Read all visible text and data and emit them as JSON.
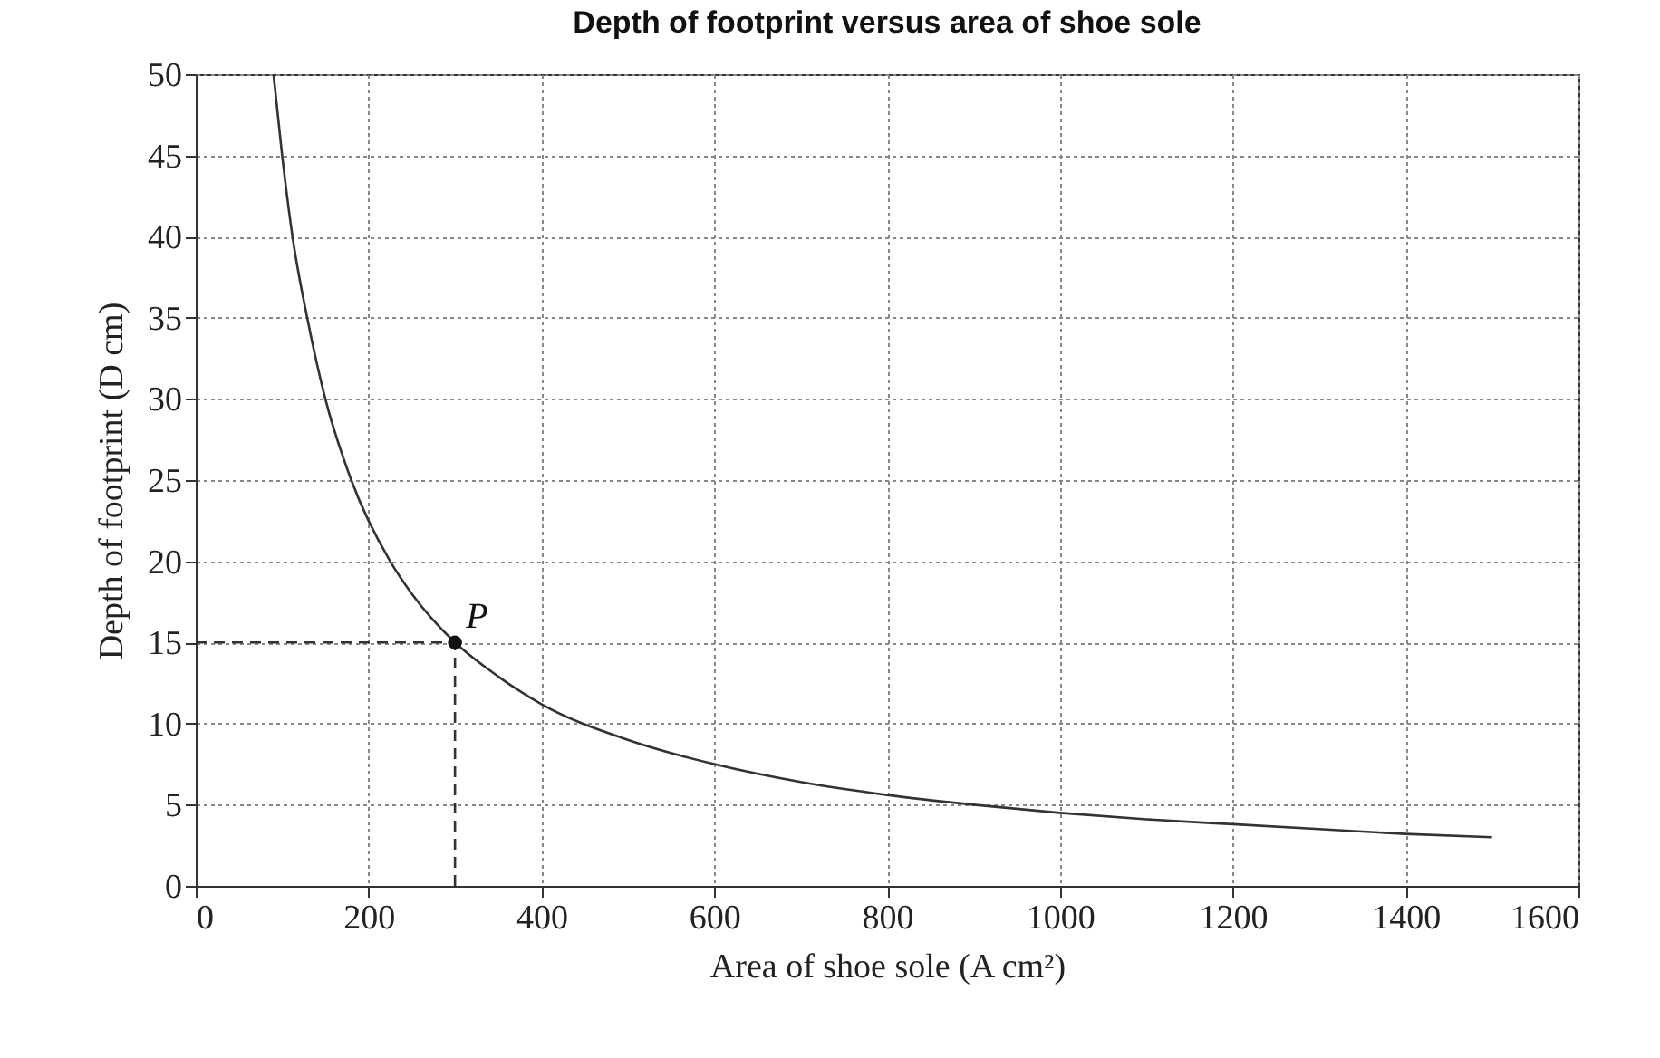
{
  "chart_data": {
    "type": "line",
    "title": "Depth of footprint versus area of shoe sole",
    "xlabel": "Area of shoe sole (A cm²)",
    "ylabel": "Depth of footprint (D cm)",
    "xlim": [
      0,
      1600
    ],
    "xticks": [
      0,
      200,
      400,
      600,
      800,
      {
        "value": 1000,
        "label": "1000"
      },
      {
        "value": 1200,
        "label": "1200"
      },
      {
        "value": 1400,
        "label": "1400"
      },
      {
        "value": 1600,
        "label": "1600"
      }
    ],
    "ylim": [
      0,
      50
    ],
    "yticks": [
      0,
      5,
      10,
      15,
      20,
      25,
      30,
      35,
      40,
      45,
      50
    ],
    "grid": true,
    "marker": "none",
    "series": [
      {
        "color": "#333333",
        "line_style": "solid",
        "x": [
          90,
          100,
          112,
          129,
          150,
          180,
          225,
          250,
          300,
          350,
          400,
          500,
          600,
          700,
          800,
          900,
          1000,
          1100,
          1200,
          1300,
          1400,
          1500
        ],
        "values": [
          50,
          45,
          40,
          35,
          30,
          25,
          20,
          18,
          15,
          12.9,
          11.2,
          9,
          7.5,
          6.4,
          5.6,
          5,
          4.5,
          4.1,
          3.8,
          3.5,
          3.2,
          3
        ]
      },
      {
        "type": "line",
        "color": "#333333",
        "line_style": "dashed",
        "x": [
          0,
          300
        ],
        "values": [
          15,
          15
        ]
      },
      {
        "type": "line",
        "color": "#333333",
        "line_style": "dashed",
        "x": [
          300,
          300
        ],
        "values": [
          0,
          15
        ]
      },
      {
        "type": "scatter",
        "color": "#111111",
        "marker": "circle",
        "x": [
          300
        ],
        "values": [
          15
        ]
      }
    ],
    "annotations": [
      {
        "text": "P",
        "x": 300,
        "y": 15
      }
    ]
  }
}
